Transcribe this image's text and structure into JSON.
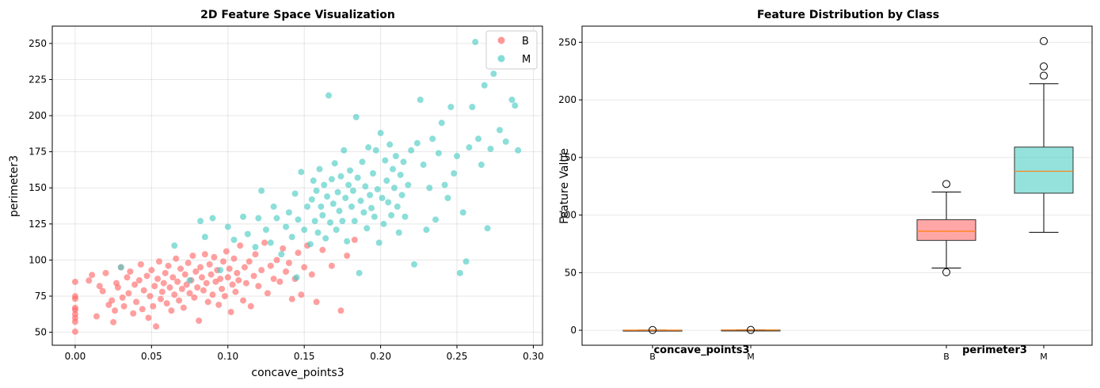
{
  "colors": {
    "B": "#FF6B6B",
    "M": "#4ECDC4",
    "grid": "#b0b0b0",
    "median": "#ff7f0e"
  },
  "chart_data": [
    {
      "type": "scatter",
      "title": "2D Feature Space Visualization",
      "xlabel": "concave_points3",
      "ylabel": "perimeter3",
      "xlim": [
        -0.015,
        0.306
      ],
      "ylim": [
        41,
        262
      ],
      "xticks": [
        "0.00",
        "0.05",
        "0.10",
        "0.15",
        "0.20",
        "0.25",
        "0.30"
      ],
      "yticks": [
        "50",
        "75",
        "100",
        "125",
        "150",
        "175",
        "200",
        "225",
        "250"
      ],
      "grid": true,
      "legend": "top-right",
      "series": [
        {
          "name": "B",
          "points": [
            [
              0,
              50.4
            ],
            [
              0,
              57.3
            ],
            [
              0,
              59.9
            ],
            [
              0,
              62.5
            ],
            [
              0,
              65.5
            ],
            [
              0,
              66.9
            ],
            [
              0,
              73.2
            ],
            [
              0,
              74.9
            ],
            [
              0,
              84.9
            ],
            [
              0.009,
              85.8
            ],
            [
              0.011,
              89.7
            ],
            [
              0.014,
              61
            ],
            [
              0.016,
              82
            ],
            [
              0.018,
              78.5
            ],
            [
              0.02,
              91
            ],
            [
              0.022,
              69
            ],
            [
              0.024,
              72
            ],
            [
              0.025,
              57
            ],
            [
              0.026,
              65
            ],
            [
              0.027,
              84
            ],
            [
              0.028,
              81
            ],
            [
              0.03,
              95
            ],
            [
              0.031,
              74
            ],
            [
              0.032,
              68
            ],
            [
              0.034,
              88
            ],
            [
              0.035,
              77
            ],
            [
              0.036,
              92
            ],
            [
              0.038,
              63
            ],
            [
              0.039,
              83
            ],
            [
              0.04,
              71
            ],
            [
              0.042,
              86
            ],
            [
              0.043,
              97
            ],
            [
              0.044,
              66
            ],
            [
              0.045,
              79
            ],
            [
              0.047,
              89
            ],
            [
              0.048,
              60
            ],
            [
              0.049,
              75
            ],
            [
              0.05,
              93
            ],
            [
              0.051,
              68
            ],
            [
              0.052,
              82
            ],
            [
              0.053,
              54
            ],
            [
              0.054,
              87
            ],
            [
              0.055,
              99
            ],
            [
              0.056,
              73
            ],
            [
              0.057,
              78
            ],
            [
              0.058,
              84
            ],
            [
              0.059,
              91
            ],
            [
              0.06,
              70
            ],
            [
              0.061,
              96
            ],
            [
              0.062,
              81
            ],
            [
              0.063,
              65
            ],
            [
              0.064,
              88
            ],
            [
              0.065,
              76
            ],
            [
              0.066,
              101
            ],
            [
              0.067,
              85
            ],
            [
              0.068,
              72
            ],
            [
              0.069,
              94
            ],
            [
              0.07,
              80
            ],
            [
              0.071,
              67
            ],
            [
              0.072,
              90
            ],
            [
              0.073,
              83
            ],
            [
              0.074,
              98
            ],
            [
              0.075,
              77
            ],
            [
              0.076,
              86
            ],
            [
              0.077,
              103
            ],
            [
              0.078,
              74
            ],
            [
              0.079,
              92
            ],
            [
              0.08,
              81
            ],
            [
              0.081,
              58
            ],
            [
              0.082,
              95
            ],
            [
              0.083,
              88
            ],
            [
              0.084,
              79
            ],
            [
              0.085,
              104
            ],
            [
              0.086,
              84
            ],
            [
              0.087,
              71
            ],
            [
              0.088,
              97
            ],
            [
              0.089,
              90
            ],
            [
              0.09,
              76
            ],
            [
              0.091,
              102
            ],
            [
              0.092,
              85
            ],
            [
              0.093,
              93
            ],
            [
              0.094,
              69
            ],
            [
              0.095,
              87
            ],
            [
              0.096,
              80
            ],
            [
              0.097,
              99
            ],
            [
              0.098,
              75
            ],
            [
              0.099,
              106
            ],
            [
              0.1,
              88
            ],
            [
              0.101,
              94
            ],
            [
              0.102,
              64
            ],
            [
              0.103,
              83
            ],
            [
              0.104,
              101
            ],
            [
              0.105,
              78
            ],
            [
              0.106,
              91
            ],
            [
              0.107,
              86
            ],
            [
              0.108,
              110
            ],
            [
              0.11,
              72
            ],
            [
              0.111,
              95
            ],
            [
              0.112,
              84
            ],
            [
              0.114,
              99
            ],
            [
              0.115,
              68
            ],
            [
              0.117,
              89
            ],
            [
              0.118,
              104
            ],
            [
              0.12,
              82
            ],
            [
              0.122,
              93
            ],
            [
              0.124,
              112
            ],
            [
              0.126,
              77
            ],
            [
              0.128,
              96
            ],
            [
              0.13,
              87
            ],
            [
              0.132,
              100
            ],
            [
              0.134,
              85
            ],
            [
              0.136,
              108
            ],
            [
              0.138,
              92
            ],
            [
              0.14,
              98
            ],
            [
              0.142,
              73
            ],
            [
              0.144,
              87
            ],
            [
              0.146,
              105
            ],
            [
              0.148,
              76
            ],
            [
              0.15,
              95
            ],
            [
              0.152,
              110
            ],
            [
              0.155,
              90
            ],
            [
              0.158,
              71
            ],
            [
              0.162,
              107
            ],
            [
              0.168,
              96
            ],
            [
              0.174,
              65
            ],
            [
              0.178,
              103
            ],
            [
              0.183,
              114
            ]
          ]
        },
        {
          "name": "M",
          "points": [
            [
              0.03,
              95
            ],
            [
              0.065,
              110
            ],
            [
              0.075,
              86
            ],
            [
              0.082,
              127
            ],
            [
              0.085,
              116
            ],
            [
              0.09,
              129
            ],
            [
              0.095,
              93
            ],
            [
              0.1,
              123
            ],
            [
              0.104,
              114
            ],
            [
              0.11,
              130
            ],
            [
              0.113,
              118
            ],
            [
              0.118,
              109
            ],
            [
              0.12,
              129
            ],
            [
              0.122,
              148
            ],
            [
              0.125,
              121
            ],
            [
              0.128,
              112
            ],
            [
              0.13,
              137
            ],
            [
              0.132,
              129
            ],
            [
              0.135,
              104
            ],
            [
              0.138,
              123
            ],
            [
              0.14,
              133
            ],
            [
              0.142,
              116
            ],
            [
              0.144,
              146
            ],
            [
              0.145,
              88
            ],
            [
              0.146,
              128
            ],
            [
              0.148,
              161
            ],
            [
              0.15,
              121
            ],
            [
              0.152,
              137
            ],
            [
              0.154,
              111
            ],
            [
              0.155,
              142
            ],
            [
              0.156,
              155
            ],
            [
              0.157,
              127
            ],
            [
              0.158,
              148
            ],
            [
              0.159,
              119
            ],
            [
              0.16,
              163
            ],
            [
              0.161,
              137
            ],
            [
              0.162,
              131
            ],
            [
              0.163,
              152
            ],
            [
              0.164,
              115
            ],
            [
              0.165,
              144
            ],
            [
              0.166,
              214
            ],
            [
              0.167,
              126
            ],
            [
              0.168,
              156
            ],
            [
              0.169,
              139
            ],
            [
              0.17,
              167
            ],
            [
              0.171,
              121
            ],
            [
              0.172,
              147
            ],
            [
              0.173,
              134
            ],
            [
              0.174,
              158
            ],
            [
              0.175,
              127
            ],
            [
              0.176,
              176
            ],
            [
              0.177,
              143
            ],
            [
              0.178,
              113
            ],
            [
              0.179,
              152
            ],
            [
              0.18,
              162
            ],
            [
              0.181,
              137
            ],
            [
              0.182,
              148
            ],
            [
              0.183,
              127
            ],
            [
              0.184,
              199
            ],
            [
              0.185,
              157
            ],
            [
              0.186,
              91
            ],
            [
              0.187,
              141
            ],
            [
              0.188,
              168
            ],
            [
              0.189,
              133
            ],
            [
              0.19,
              151
            ],
            [
              0.191,
              122
            ],
            [
              0.192,
              178
            ],
            [
              0.193,
              145
            ],
            [
              0.194,
              136
            ],
            [
              0.195,
              160
            ],
            [
              0.196,
              130
            ],
            [
              0.197,
              176
            ],
            [
              0.198,
              149
            ],
            [
              0.199,
              112
            ],
            [
              0.2,
              188
            ],
            [
              0.201,
              143
            ],
            [
              0.202,
              125
            ],
            [
              0.203,
              169
            ],
            [
              0.204,
              155
            ],
            [
              0.205,
              140
            ],
            [
              0.206,
              180
            ],
            [
              0.207,
              131
            ],
            [
              0.208,
              163
            ],
            [
              0.209,
              150
            ],
            [
              0.21,
              172
            ],
            [
              0.211,
              137
            ],
            [
              0.212,
              119
            ],
            [
              0.213,
              159
            ],
            [
              0.214,
              145
            ],
            [
              0.215,
              168
            ],
            [
              0.216,
              130
            ],
            [
              0.218,
              152
            ],
            [
              0.22,
              176
            ],
            [
              0.222,
              97
            ],
            [
              0.224,
              181
            ],
            [
              0.226,
              211
            ],
            [
              0.228,
              166
            ],
            [
              0.23,
              121
            ],
            [
              0.232,
              150
            ],
            [
              0.234,
              184
            ],
            [
              0.236,
              128
            ],
            [
              0.238,
              174
            ],
            [
              0.24,
              195
            ],
            [
              0.242,
              152
            ],
            [
              0.244,
              143
            ],
            [
              0.246,
              206
            ],
            [
              0.248,
              160
            ],
            [
              0.25,
              172
            ],
            [
              0.252,
              91
            ],
            [
              0.254,
              133
            ],
            [
              0.256,
              99
            ],
            [
              0.258,
              178
            ],
            [
              0.26,
              206
            ],
            [
              0.262,
              251
            ],
            [
              0.264,
              184
            ],
            [
              0.266,
              166
            ],
            [
              0.268,
              221
            ],
            [
              0.27,
              122
            ],
            [
              0.272,
              177
            ],
            [
              0.274,
              229
            ],
            [
              0.278,
              190
            ],
            [
              0.282,
              182
            ],
            [
              0.286,
              211
            ],
            [
              0.288,
              207
            ],
            [
              0.29,
              176
            ]
          ]
        }
      ]
    },
    {
      "type": "box",
      "title": "Feature Distribution by Class",
      "ylabel": "Feature Value",
      "ylim": [
        -13,
        264
      ],
      "yticks": [
        "0",
        "50",
        "100",
        "150",
        "200",
        "250"
      ],
      "grid": true,
      "groups": [
        {
          "label": "concave_points3",
          "boxes": [
            {
              "class": "B",
              "tick": "B",
              "whislo": 0,
              "q1": 0.05,
              "med": 0.075,
              "q3": 0.1,
              "whishi": 0.175,
              "fliers": [
                0.2
              ]
            },
            {
              "class": "M",
              "tick": "M",
              "whislo": 0.03,
              "q1": 0.15,
              "med": 0.18,
              "q3": 0.21,
              "whishi": 0.29,
              "fliers": [
                0.29
              ]
            }
          ]
        },
        {
          "label": "perimeter3",
          "boxes": [
            {
              "class": "B",
              "tick": "B",
              "whislo": 54,
              "q1": 78,
              "med": 86,
              "q3": 96,
              "whishi": 120,
              "fliers": [
                50.4,
                127
              ]
            },
            {
              "class": "M",
              "tick": "M",
              "whislo": 85,
              "q1": 119,
              "med": 138,
              "q3": 159,
              "whishi": 214,
              "fliers": [
                221,
                229,
                251
              ]
            }
          ]
        }
      ]
    }
  ]
}
